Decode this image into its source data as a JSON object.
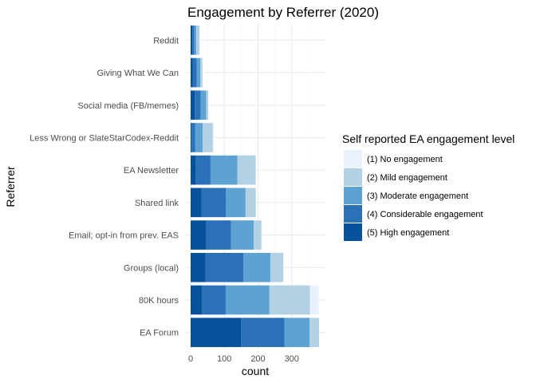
{
  "chart_data": {
    "type": "bar",
    "orientation": "horizontal",
    "stacked": true,
    "title": "Engagement by Referrer (2020)",
    "xlabel": "count",
    "ylabel": "Referrer",
    "xlim": [
      0,
      380
    ],
    "xticks": [
      0,
      100,
      200,
      300
    ],
    "grid": true,
    "legend_title": "Self reported EA engagement level",
    "legend_position": "right",
    "categories": [
      "Reddit",
      "Giving What We Can",
      "Social media (FB/memes)",
      "Less Wrong or SlateStarCodex-Reddit",
      "EA Newsletter",
      "Shared link",
      "Email; opt-in from prev. EAS",
      "Groups (local)",
      "80K hours",
      "EA Forum"
    ],
    "series": [
      {
        "name": "(5) High engagement",
        "color": "#08519c",
        "values": [
          5,
          6,
          12,
          3,
          16,
          32,
          45,
          44,
          34,
          150
        ]
      },
      {
        "name": "(4) Considerable engagement",
        "color": "#2b71b8",
        "values": [
          6,
          12,
          18,
          10,
          43,
          73,
          75,
          113,
          70,
          128
        ]
      },
      {
        "name": "(3) Moderate engagement",
        "color": "#5ca2d2",
        "values": [
          6,
          11,
          16,
          23,
          80,
          58,
          67,
          80,
          130,
          75
        ]
      },
      {
        "name": "(2) Mild engagement",
        "color": "#b3d1e5",
        "values": [
          9,
          6,
          6,
          30,
          54,
          30,
          23,
          38,
          120,
          28
        ]
      },
      {
        "name": "(1) No engagement",
        "color": "#eaf1fc",
        "values": [
          1,
          1,
          1,
          3,
          1,
          2,
          2,
          1,
          26,
          0
        ]
      }
    ]
  }
}
